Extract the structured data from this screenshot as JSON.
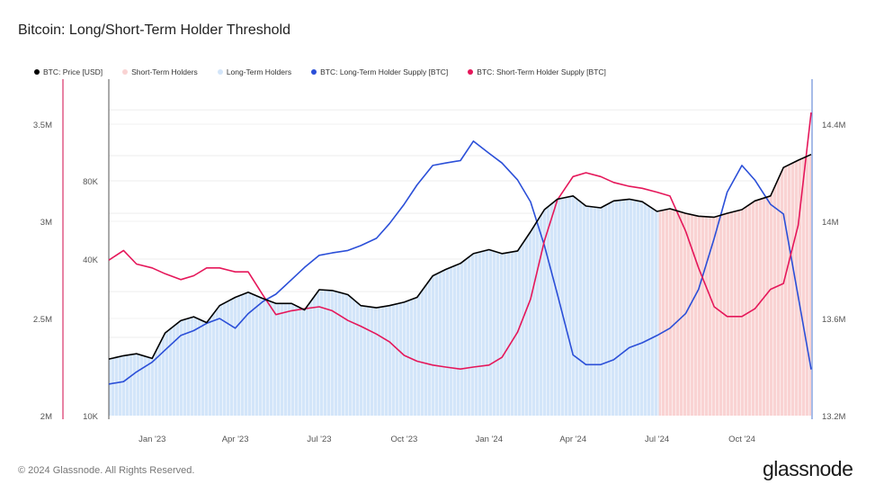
{
  "title": "Bitcoin: Long/Short-Term Holder Threshold",
  "footer": "© 2024 Glassnode. All Rights Reserved.",
  "logo": "glassnode",
  "colors": {
    "price": "#000000",
    "sth_area": "#f9d3d3",
    "lth_area": "#d3e5f9",
    "lth_supply": "#2b4fd8",
    "sth_supply": "#e5175a"
  },
  "chart_data": {
    "type": "line",
    "title": "Bitcoin: Long/Short-Term Holder Threshold",
    "legend": [
      {
        "name": "BTC: Price [USD]",
        "color": "#000000"
      },
      {
        "name": "Short-Term Holders",
        "color": "#f9d3d3"
      },
      {
        "name": "Long-Term Holders",
        "color": "#d3e5f9"
      },
      {
        "name": "BTC: Long-Term Holder Supply [BTC]",
        "color": "#2b4fd8"
      },
      {
        "name": "BTC: Short-Term Holder Supply [BTC]",
        "color": "#e5175a"
      }
    ],
    "legend_position": "top-left",
    "x_ticks": [
      "Jan '23",
      "Apr '23",
      "Jul '23",
      "Oct '23",
      "Jan '24",
      "Apr '24",
      "Jul '24",
      "Oct '24"
    ],
    "x_tick_dates": [
      "2023-01-01",
      "2023-04-01",
      "2023-07-01",
      "2023-10-01",
      "2024-01-01",
      "2024-04-01",
      "2024-07-01",
      "2024-10-01"
    ],
    "x_range": [
      "2022-11-15",
      "2024-12-15"
    ],
    "axes": {
      "sth_supply": {
        "side": "left-outer",
        "scale": "linear",
        "range": [
          2000000,
          3750000
        ],
        "ticks": [
          2000000,
          2500000,
          3000000,
          3500000
        ],
        "tick_labels": [
          "2M",
          "2.5M",
          "3M",
          "3.5M"
        ]
      },
      "price": {
        "side": "left-inner",
        "scale": "log",
        "range": [
          10000,
          180000
        ],
        "ticks": [
          10000,
          40000,
          80000
        ],
        "tick_labels": [
          "10K",
          "40K",
          "80K"
        ]
      },
      "lth_supply": {
        "side": "right",
        "scale": "linear",
        "range": [
          13200000,
          14500000
        ],
        "ticks": [
          13200000,
          13600000,
          14000000,
          14400000
        ],
        "tick_labels": [
          "13.2M",
          "13.6M",
          "14M",
          "14.4M"
        ]
      }
    },
    "holder_regime": [
      {
        "name": "Long-Term Holders",
        "from": "2022-11-15",
        "to": "2024-07-03"
      },
      {
        "name": "Short-Term Holders",
        "from": "2024-07-03",
        "to": "2024-12-15"
      }
    ],
    "dates": [
      "2022-11-15",
      "2022-12-01",
      "2022-12-15",
      "2023-01-01",
      "2023-01-15",
      "2023-02-01",
      "2023-02-15",
      "2023-03-01",
      "2023-03-15",
      "2023-04-01",
      "2023-04-15",
      "2023-05-01",
      "2023-05-15",
      "2023-06-01",
      "2023-06-15",
      "2023-07-01",
      "2023-07-15",
      "2023-08-01",
      "2023-08-15",
      "2023-09-01",
      "2023-09-15",
      "2023-10-01",
      "2023-10-15",
      "2023-11-01",
      "2023-11-15",
      "2023-12-01",
      "2023-12-15",
      "2024-01-01",
      "2024-01-15",
      "2024-02-01",
      "2024-02-15",
      "2024-03-01",
      "2024-03-15",
      "2024-04-01",
      "2024-04-15",
      "2024-05-01",
      "2024-05-15",
      "2024-06-01",
      "2024-06-15",
      "2024-07-01",
      "2024-07-15",
      "2024-08-01",
      "2024-08-15",
      "2024-09-01",
      "2024-09-15",
      "2024-10-01",
      "2024-10-15",
      "2024-11-01",
      "2024-11-15",
      "2024-12-01",
      "2024-12-15"
    ],
    "series": [
      {
        "name": "BTC: Price [USD]",
        "axis": "price",
        "values": [
          16500,
          17000,
          17300,
          16600,
          20800,
          23200,
          24000,
          22800,
          26500,
          28500,
          29800,
          28200,
          27000,
          27000,
          25500,
          30500,
          30300,
          29200,
          26500,
          26000,
          26500,
          27300,
          28500,
          34500,
          36500,
          38500,
          42000,
          43500,
          42000,
          43000,
          51000,
          62000,
          68000,
          70000,
          64000,
          63000,
          67000,
          68000,
          66500,
          61000,
          62500,
          60000,
          58500,
          58000,
          60000,
          62000,
          67000,
          70000,
          90000,
          96000,
          101000
        ]
      },
      {
        "name": "BTC: Long-Term Holder Supply [BTC]",
        "axis": "lth_supply",
        "values": [
          13330000,
          13340000,
          13380000,
          13420000,
          13470000,
          13530000,
          13550000,
          13580000,
          13600000,
          13560000,
          13620000,
          13670000,
          13700000,
          13760000,
          13810000,
          13860000,
          13870000,
          13880000,
          13900000,
          13930000,
          13990000,
          14070000,
          14150000,
          14230000,
          14240000,
          14250000,
          14330000,
          14280000,
          14240000,
          14170000,
          14080000,
          13900000,
          13700000,
          13450000,
          13410000,
          13410000,
          13430000,
          13480000,
          13500000,
          13530000,
          13560000,
          13620000,
          13720000,
          13930000,
          14120000,
          14230000,
          14170000,
          14070000,
          14030000,
          13690000,
          13390000
        ]
      },
      {
        "name": "BTC: Short-Term Holder Supply [BTC]",
        "axis": "sth_supply",
        "values": [
          2800000,
          2850000,
          2780000,
          2760000,
          2730000,
          2700000,
          2720000,
          2760000,
          2760000,
          2740000,
          2740000,
          2620000,
          2520000,
          2540000,
          2550000,
          2560000,
          2540000,
          2490000,
          2460000,
          2420000,
          2380000,
          2310000,
          2280000,
          2260000,
          2250000,
          2240000,
          2250000,
          2260000,
          2300000,
          2430000,
          2600000,
          2900000,
          3110000,
          3230000,
          3250000,
          3230000,
          3200000,
          3180000,
          3170000,
          3150000,
          3130000,
          2950000,
          2760000,
          2560000,
          2510000,
          2510000,
          2550000,
          2650000,
          2680000,
          2980000,
          3560000
        ]
      }
    ]
  }
}
